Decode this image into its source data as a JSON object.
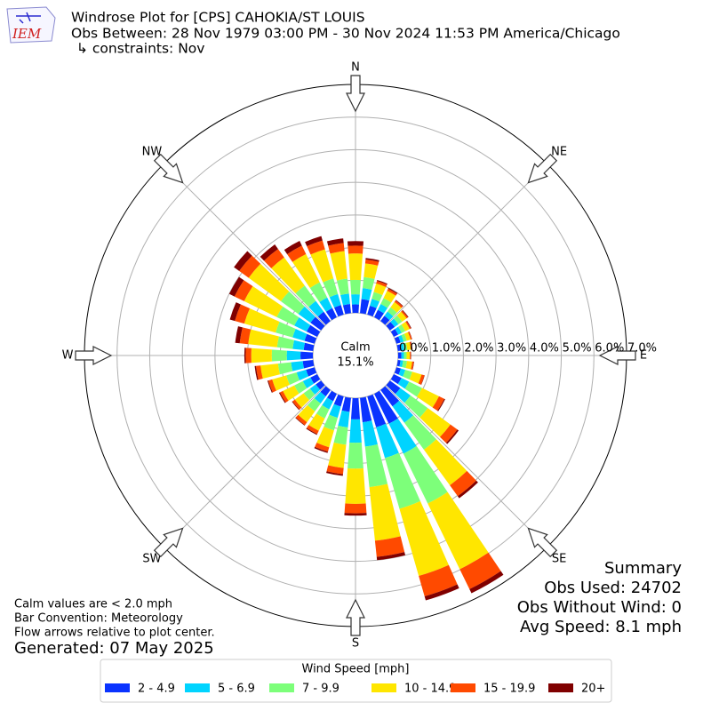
{
  "chart_data": {
    "type": "windrose",
    "title": "Windrose Plot for [CPS] CAHOKIA/ST LOUIS",
    "subtitle": "Obs Between: 28 Nov 1979 03:00 PM - 30 Nov 2024 11:53 PM America/Chicago",
    "constraints": "↳ constraints: Nov",
    "logo_text": "IEM",
    "calm": {
      "label": "Calm",
      "value": 15.1,
      "value_label": "15.1%"
    },
    "x": [
      0,
      10,
      20,
      30,
      40,
      50,
      60,
      70,
      80,
      90,
      100,
      110,
      120,
      130,
      140,
      150,
      160,
      170,
      180,
      190,
      200,
      210,
      220,
      230,
      240,
      250,
      260,
      270,
      280,
      290,
      300,
      310,
      320,
      330,
      340,
      350
    ],
    "rlim": [
      0,
      7
    ],
    "rticks": [
      {
        "value": 0,
        "label": "0.0%"
      },
      {
        "value": 1,
        "label": "1.0%"
      },
      {
        "value": 2,
        "label": "2.0%"
      },
      {
        "value": 3,
        "label": "3.0%"
      },
      {
        "value": 4,
        "label": "4.0%"
      },
      {
        "value": 5,
        "label": "5.0%"
      },
      {
        "value": 6,
        "label": "6.0%"
      },
      {
        "value": 7,
        "label": "7.0%"
      }
    ],
    "thetaticks": [
      {
        "value": 0,
        "label": "N"
      },
      {
        "value": 45,
        "label": "NE"
      },
      {
        "value": 90,
        "label": "E"
      },
      {
        "value": 135,
        "label": "SE"
      },
      {
        "value": 180,
        "label": "S"
      },
      {
        "value": 225,
        "label": "SW"
      },
      {
        "value": 270,
        "label": "W"
      },
      {
        "value": 315,
        "label": "NW"
      }
    ],
    "grid": true,
    "legend_title": "Wind Speed [mph]",
    "series": [
      {
        "name": "2 - 4.9",
        "color": "#0a33ff",
        "values": [
          0.26,
          0.43,
          0.28,
          0.25,
          0.2,
          0.18,
          0.15,
          0.13,
          0.11,
          0.1,
          0.08,
          0.14,
          0.26,
          0.39,
          0.62,
          1.02,
          0.98,
          0.75,
          0.65,
          0.43,
          0.32,
          0.25,
          0.24,
          0.2,
          0.23,
          0.27,
          0.32,
          0.38,
          0.29,
          0.32,
          0.36,
          0.4,
          0.35,
          0.31,
          0.3,
          0.28
        ]
      },
      {
        "name": "5 - 6.9",
        "color": "#00d4ff",
        "values": [
          0.31,
          0.34,
          0.22,
          0.2,
          0.16,
          0.14,
          0.12,
          0.1,
          0.09,
          0.08,
          0.08,
          0.14,
          0.26,
          0.39,
          0.62,
          1.02,
          0.98,
          0.75,
          0.72,
          0.48,
          0.36,
          0.28,
          0.27,
          0.22,
          0.26,
          0.3,
          0.36,
          0.42,
          0.34,
          0.38,
          0.42,
          0.46,
          0.41,
          0.36,
          0.35,
          0.32
        ]
      },
      {
        "name": "7 - 9.9",
        "color": "#7dff7a",
        "values": [
          0.44,
          0.34,
          0.22,
          0.2,
          0.16,
          0.14,
          0.12,
          0.1,
          0.09,
          0.08,
          0.12,
          0.22,
          0.44,
          0.65,
          1.02,
          1.7,
          1.62,
          1.25,
          0.79,
          0.53,
          0.4,
          0.31,
          0.3,
          0.24,
          0.29,
          0.33,
          0.4,
          0.46,
          0.48,
          0.54,
          0.6,
          0.66,
          0.58,
          0.52,
          0.5,
          0.46
        ]
      },
      {
        "name": "10 - 14.9",
        "color": "#ffe600",
        "values": [
          0.81,
          0.42,
          0.27,
          0.25,
          0.2,
          0.17,
          0.15,
          0.12,
          0.11,
          0.1,
          0.16,
          0.3,
          0.58,
          0.86,
          1.35,
          2.24,
          2.14,
          1.65,
          1.08,
          0.72,
          0.54,
          0.42,
          0.41,
          0.33,
          0.39,
          0.45,
          0.54,
          0.63,
          0.89,
          1.0,
          1.11,
          1.22,
          1.07,
          0.96,
          0.93,
          0.85
        ]
      },
      {
        "name": "15 - 19.9",
        "color": "#ff4a00",
        "values": [
          0.24,
          0.12,
          0.08,
          0.07,
          0.06,
          0.05,
          0.04,
          0.04,
          0.03,
          0.03,
          0.05,
          0.09,
          0.18,
          0.26,
          0.41,
          0.68,
          0.65,
          0.5,
          0.29,
          0.19,
          0.14,
          0.11,
          0.11,
          0.09,
          0.1,
          0.12,
          0.14,
          0.17,
          0.26,
          0.3,
          0.33,
          0.36,
          0.32,
          0.29,
          0.28,
          0.25
        ]
      },
      {
        "name": "20+",
        "color": "#800000",
        "values": [
          0.14,
          0.05,
          0.03,
          0.03,
          0.02,
          0.02,
          0.02,
          0.01,
          0.02,
          0.01,
          0.01,
          0.01,
          0.03,
          0.05,
          0.08,
          0.14,
          0.13,
          0.1,
          0.07,
          0.05,
          0.04,
          0.03,
          0.02,
          0.02,
          0.03,
          0.03,
          0.04,
          0.04,
          0.14,
          0.16,
          0.18,
          0.2,
          0.17,
          0.16,
          0.14,
          0.14
        ]
      }
    ],
    "summary": [
      "Summary",
      "Obs Used: 24702",
      "Obs Without Wind: 0",
      "Avg Speed: 8.1 mph"
    ],
    "notes": [
      "Calm values are < 2.0 mph",
      "Bar Convention: Meteorology",
      "Flow arrows relative to plot center."
    ],
    "generated": "Generated: 07 May 2025"
  }
}
